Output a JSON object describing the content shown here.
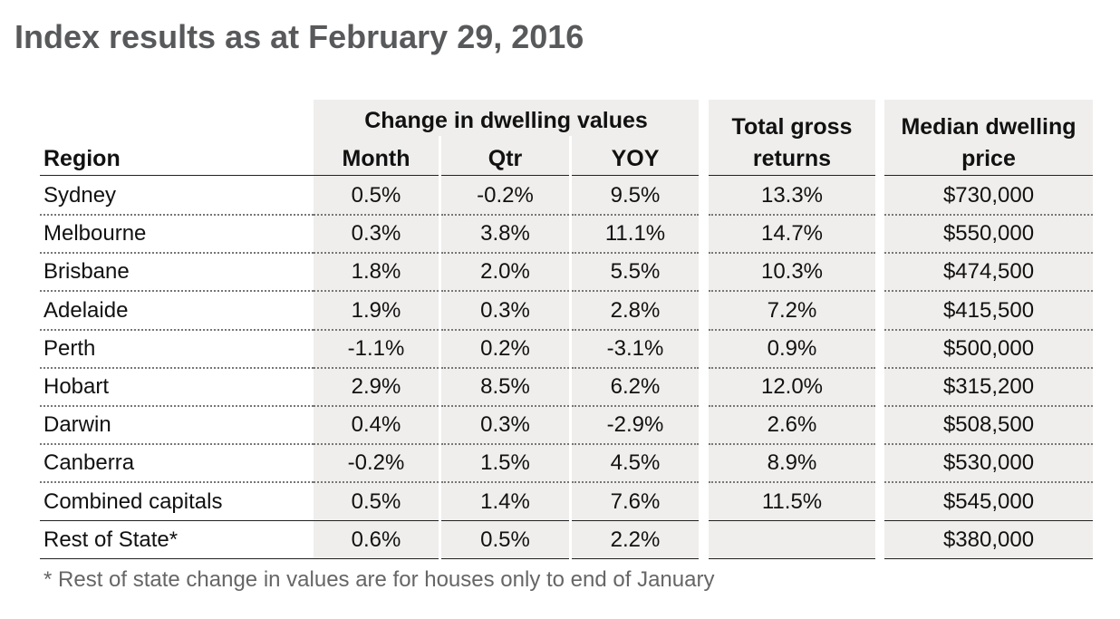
{
  "title": "Index results as at February 29, 2016",
  "headers": {
    "group": "Change in dwelling values",
    "region": "Region",
    "month": "Month",
    "qtr": "Qtr",
    "yoy": "YOY",
    "total_line1": "Total gross",
    "total_line2": "returns",
    "median_line1": "Median dwelling",
    "median_line2": "price"
  },
  "rows": [
    [
      "Sydney",
      "0.5%",
      "-0.2%",
      "9.5%",
      "13.3%",
      "$730,000"
    ],
    [
      "Melbourne",
      "0.3%",
      "3.8%",
      "11.1%",
      "14.7%",
      "$550,000"
    ],
    [
      "Brisbane",
      "1.8%",
      "2.0%",
      "5.5%",
      "10.3%",
      "$474,500"
    ],
    [
      "Adelaide",
      "1.9%",
      "0.3%",
      "2.8%",
      "7.2%",
      "$415,500"
    ],
    [
      "Perth",
      "-1.1%",
      "0.2%",
      "-3.1%",
      "0.9%",
      "$500,000"
    ],
    [
      "Hobart",
      "2.9%",
      "8.5%",
      "6.2%",
      "12.0%",
      "$315,200"
    ],
    [
      "Darwin",
      "0.4%",
      "0.3%",
      "-2.9%",
      "2.6%",
      "$508,500"
    ],
    [
      "Canberra",
      "-0.2%",
      "1.5%",
      "4.5%",
      "8.9%",
      "$530,000"
    ],
    [
      "Combined capitals",
      "0.5%",
      "1.4%",
      "7.6%",
      "11.5%",
      "$545,000"
    ],
    [
      "Rest of State*",
      "0.6%",
      "0.5%",
      "2.2%",
      "",
      "$380,000"
    ]
  ],
  "footnote": "* Rest of state change in values are for houses only to end of January",
  "colors": {
    "title": "#58595b",
    "shade": "#f0eeec",
    "footnote": "#666666"
  }
}
